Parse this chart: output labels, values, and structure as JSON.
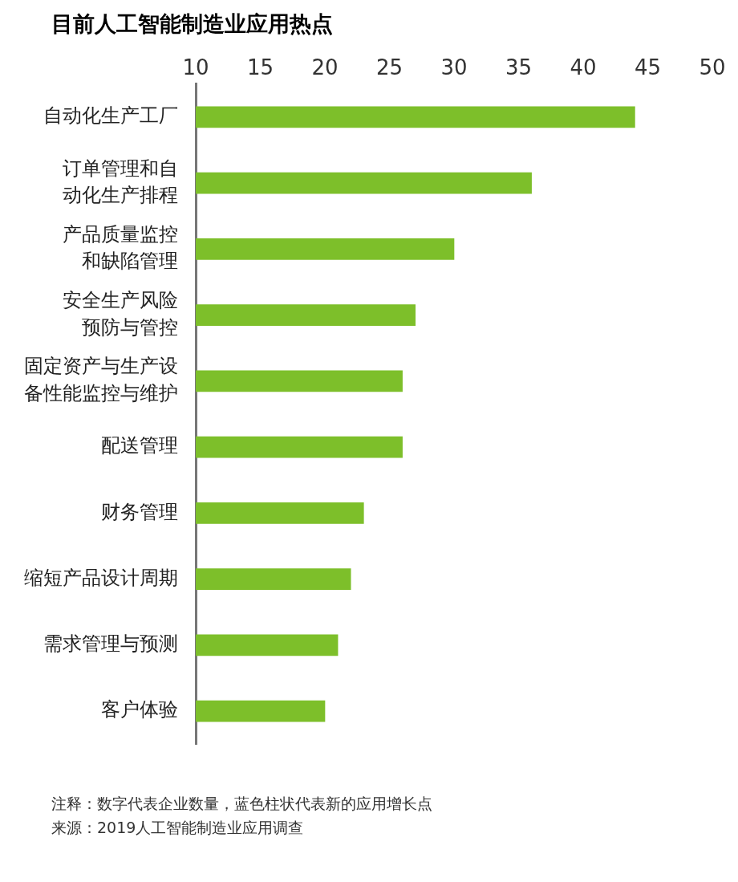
{
  "chart_data": {
    "type": "bar",
    "orientation": "horizontal",
    "title": "目前人工智能制造业应用热点",
    "categories": [
      "自动化生产工厂",
      "订单管理和自动化生产排程",
      "产品质量监控和缺陷管理",
      "安全生产风险预防与管控",
      "固定资产与生产设备性能监控与维护",
      "配送管理",
      "财务管理",
      "缩短产品设计周期",
      "需求管理与预测",
      "客户体验"
    ],
    "values": [
      44,
      36,
      30,
      27,
      26,
      26,
      23,
      22,
      21,
      20
    ],
    "color": "#7dbf2a",
    "xlim": [
      10,
      50
    ],
    "xticks": [
      10,
      15,
      20,
      25,
      30,
      35,
      40,
      45,
      50
    ],
    "grid": false,
    "legend": false,
    "annotations": [
      "注释：数字代表企业数量，蓝色柱状代表新的应用增长点",
      "来源：2019人工智能制造业应用调查"
    ]
  }
}
